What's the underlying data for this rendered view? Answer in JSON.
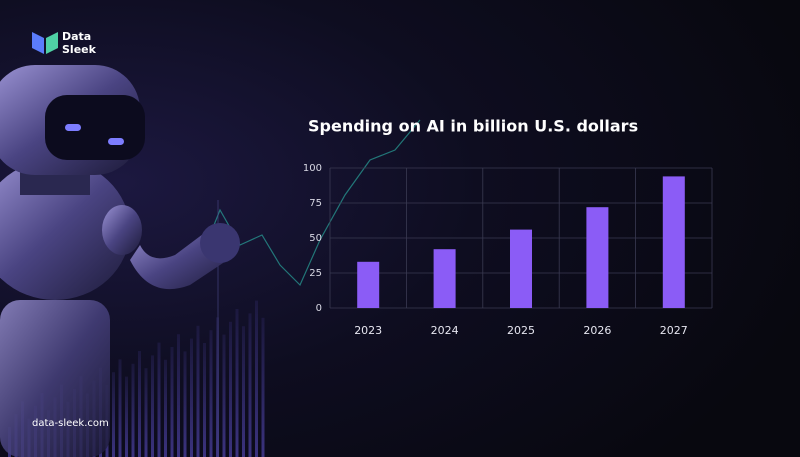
{
  "logo": {
    "line1": "Data",
    "line2": "Sleek"
  },
  "website": "data-sleek.com",
  "chart_data": {
    "type": "bar",
    "title": "Spending on AI in billion U.S. dollars",
    "categories": [
      "2023",
      "2024",
      "2025",
      "2026",
      "2027"
    ],
    "values": [
      33,
      42,
      56,
      72,
      94
    ],
    "color": "#8b5cf6",
    "ylim": [
      0,
      100
    ],
    "yticks": [
      0,
      25,
      50,
      75,
      100
    ],
    "grid": true
  }
}
